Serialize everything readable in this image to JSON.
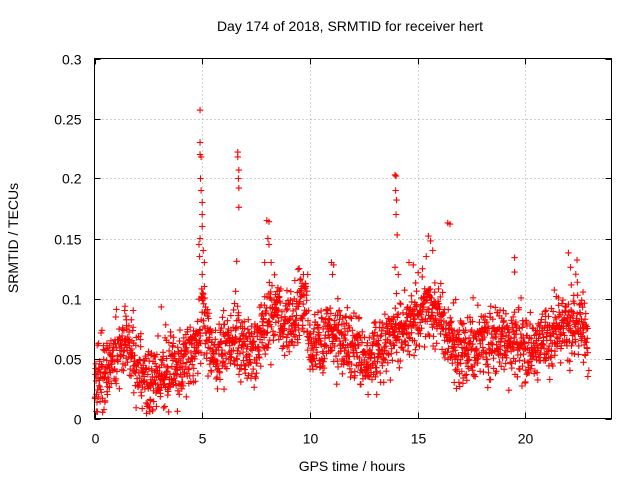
{
  "chart_data": {
    "type": "scatter",
    "title": "Day 174 of 2018, SRMTID for receiver hert",
    "xlabel": "GPS time / hours",
    "ylabel": "SRMTID / TECUs",
    "xlim": [
      0,
      24
    ],
    "ylim": [
      0,
      0.3
    ],
    "xticks": [
      0,
      5,
      10,
      15,
      20
    ],
    "xtick_labels": [
      "0",
      "5",
      "10",
      "15",
      "20"
    ],
    "yticks": [
      0,
      0.05,
      0.1,
      0.15,
      0.2,
      0.25,
      0.3
    ],
    "ytick_labels": [
      "0",
      "0.05",
      "0.1",
      "0.15",
      "0.2",
      "0.25",
      "0.3"
    ],
    "grid": true,
    "marker": "+",
    "color": "#ff0000",
    "series": [
      {
        "name": "SRMTID",
        "trend": [
          [
            0,
            0.03
          ],
          [
            0.5,
            0.04
          ],
          [
            1,
            0.055
          ],
          [
            1.5,
            0.065
          ],
          [
            2,
            0.045
          ],
          [
            2.5,
            0.03
          ],
          [
            3,
            0.035
          ],
          [
            3.5,
            0.045
          ],
          [
            4,
            0.045
          ],
          [
            4.5,
            0.055
          ],
          [
            4.8,
            0.06
          ],
          [
            5,
            0.09
          ],
          [
            5.2,
            0.07
          ],
          [
            5.5,
            0.055
          ],
          [
            6,
            0.06
          ],
          [
            6.5,
            0.065
          ],
          [
            7,
            0.06
          ],
          [
            7.5,
            0.055
          ],
          [
            8,
            0.08
          ],
          [
            8.5,
            0.09
          ],
          [
            9,
            0.075
          ],
          [
            9.5,
            0.09
          ],
          [
            9.8,
            0.1
          ],
          [
            10,
            0.06
          ],
          [
            10.5,
            0.065
          ],
          [
            11,
            0.07
          ],
          [
            11.5,
            0.065
          ],
          [
            12,
            0.06
          ],
          [
            12.5,
            0.05
          ],
          [
            13,
            0.055
          ],
          [
            13.5,
            0.06
          ],
          [
            14,
            0.075
          ],
          [
            14.5,
            0.075
          ],
          [
            15,
            0.08
          ],
          [
            15.5,
            0.095
          ],
          [
            16,
            0.085
          ],
          [
            16.5,
            0.065
          ],
          [
            17,
            0.06
          ],
          [
            17.5,
            0.06
          ],
          [
            18,
            0.065
          ],
          [
            18.5,
            0.07
          ],
          [
            19,
            0.065
          ],
          [
            19.5,
            0.065
          ],
          [
            20,
            0.06
          ],
          [
            20.5,
            0.06
          ],
          [
            21,
            0.065
          ],
          [
            21.5,
            0.075
          ],
          [
            22,
            0.075
          ],
          [
            22.5,
            0.085
          ],
          [
            22.9,
            0.065
          ]
        ],
        "highlights": [
          [
            4.9,
            0.257
          ],
          [
            4.9,
            0.23
          ],
          [
            4.9,
            0.22
          ],
          [
            4.95,
            0.218
          ],
          [
            4.92,
            0.2
          ],
          [
            4.95,
            0.19
          ],
          [
            5.0,
            0.18
          ],
          [
            5.0,
            0.17
          ],
          [
            5.0,
            0.16
          ],
          [
            4.9,
            0.15
          ],
          [
            5.05,
            0.14
          ],
          [
            5.1,
            0.13
          ],
          [
            5.0,
            0.12
          ],
          [
            5.1,
            0.11
          ],
          [
            5.05,
            0.1
          ],
          [
            4.85,
            0.145
          ],
          [
            4.88,
            0.135
          ],
          [
            6.65,
            0.222
          ],
          [
            6.65,
            0.218
          ],
          [
            6.7,
            0.207
          ],
          [
            6.68,
            0.2
          ],
          [
            6.7,
            0.192
          ],
          [
            6.7,
            0.176
          ],
          [
            6.6,
            0.131
          ],
          [
            6.55,
            0.106
          ],
          [
            8.0,
            0.165
          ],
          [
            8.1,
            0.164
          ],
          [
            8.05,
            0.15
          ],
          [
            8.1,
            0.145
          ],
          [
            8.2,
            0.13
          ],
          [
            7.9,
            0.13
          ],
          [
            13.95,
            0.203
          ],
          [
            14.0,
            0.202
          ],
          [
            13.98,
            0.19
          ],
          [
            14.02,
            0.182
          ],
          [
            14.0,
            0.17
          ],
          [
            14.05,
            0.153
          ],
          [
            13.95,
            0.126
          ],
          [
            14.1,
            0.12
          ],
          [
            15.5,
            0.152
          ],
          [
            15.6,
            0.148
          ],
          [
            15.7,
            0.14
          ],
          [
            15.4,
            0.135
          ],
          [
            16.4,
            0.163
          ],
          [
            16.5,
            0.162
          ],
          [
            11.0,
            0.13
          ],
          [
            11.1,
            0.128
          ],
          [
            11.05,
            0.12
          ],
          [
            14.6,
            0.13
          ],
          [
            14.8,
            0.128
          ],
          [
            19.5,
            0.134
          ],
          [
            19.5,
            0.122
          ],
          [
            22.0,
            0.138
          ],
          [
            22.4,
            0.132
          ],
          [
            22.1,
            0.126
          ],
          [
            3.85,
            0.006
          ],
          [
            2.4,
            0.013
          ],
          [
            2.6,
            0.015
          ],
          [
            0.6,
            0.02
          ],
          [
            12.7,
            0.02
          ],
          [
            13.1,
            0.02
          ],
          [
            16.8,
            0.025
          ],
          [
            16.7,
            0.03
          ],
          [
            22.9,
            0.035
          ],
          [
            22.95,
            0.04
          ],
          [
            3.1,
            0.093
          ],
          [
            1.4,
            0.09
          ],
          [
            1.8,
            0.09
          ],
          [
            9.5,
            0.125
          ],
          [
            9.7,
            0.12
          ],
          [
            9.3,
            0.115
          ],
          [
            9.9,
            0.12
          ]
        ]
      }
    ]
  }
}
